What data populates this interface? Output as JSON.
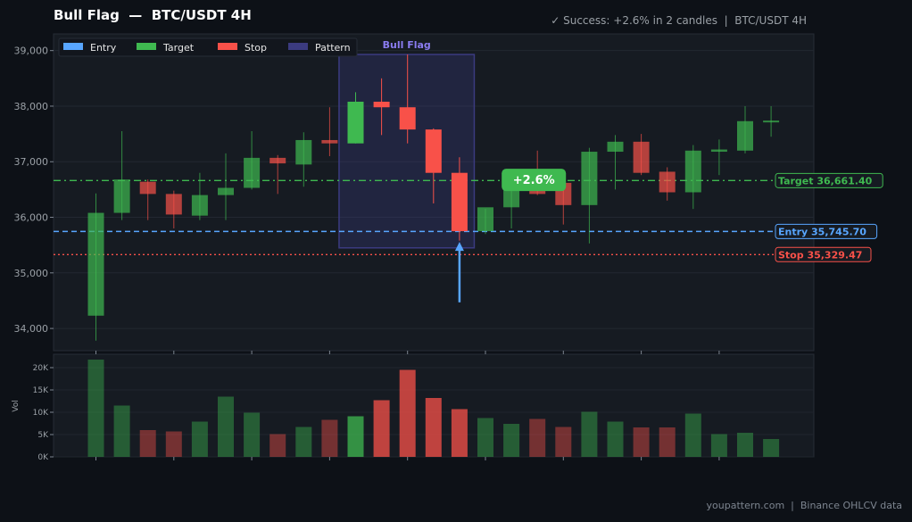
{
  "header": {
    "title": "Bull Flag  —  BTC/USDT 4H",
    "status": "✓ Success: +2.6% in 2 candles  |  BTC/USDT 4H"
  },
  "footer": {
    "text": "youpattern.com  |  Binance OHLCV data"
  },
  "colors": {
    "bg": "#0d1117",
    "panel": "#161b22",
    "up": "#3fb950",
    "down": "#f85149",
    "entry": "#58a6ff",
    "target": "#3fb950",
    "stop": "#f85149",
    "pattern": "#3b3b80",
    "pattern_label": "#8a7cf0"
  },
  "chart_data": {
    "type": "candlestick",
    "price_ylim": [
      33600,
      39300
    ],
    "price_ticks": [
      "34,000",
      "35,000",
      "36,000",
      "37,000",
      "38,000",
      "39,000"
    ],
    "price_tick_values": [
      34000,
      35000,
      36000,
      37000,
      38000,
      39000
    ],
    "volume_ylim": [
      0,
      23000
    ],
    "volume_ticks": [
      "0K",
      "5K",
      "10K",
      "15K",
      "20K"
    ],
    "volume_tick_values": [
      0,
      5000,
      10000,
      15000,
      20000
    ],
    "volume_ylabel": "Vol",
    "grid": true,
    "legend_position": "top-left",
    "legend": [
      {
        "label": "Entry",
        "color": "#58a6ff"
      },
      {
        "label": "Target",
        "color": "#3fb950"
      },
      {
        "label": "Stop",
        "color": "#f85149"
      },
      {
        "label": "Pattern",
        "color": "#3b3b80"
      }
    ],
    "candles": [
      {
        "o": 34230,
        "h": 36430,
        "l": 33780,
        "c": 36080,
        "v": 21800
      },
      {
        "o": 36080,
        "h": 37550,
        "l": 35950,
        "c": 36680,
        "v": 11500
      },
      {
        "o": 36640,
        "h": 36680,
        "l": 35950,
        "c": 36420,
        "v": 6000
      },
      {
        "o": 36420,
        "h": 36480,
        "l": 35800,
        "c": 36050,
        "v": 5700
      },
      {
        "o": 36030,
        "h": 36800,
        "l": 35950,
        "c": 36400,
        "v": 7900
      },
      {
        "o": 36400,
        "h": 37150,
        "l": 35950,
        "c": 36530,
        "v": 13500
      },
      {
        "o": 36530,
        "h": 37550,
        "l": 36500,
        "c": 37070,
        "v": 9900
      },
      {
        "o": 37070,
        "h": 37120,
        "l": 36420,
        "c": 36970,
        "v": 5100
      },
      {
        "o": 36950,
        "h": 37530,
        "l": 36550,
        "c": 37390,
        "v": 6700
      },
      {
        "o": 37390,
        "h": 37980,
        "l": 37100,
        "c": 37330,
        "v": 8300
      },
      {
        "o": 37330,
        "h": 38250,
        "l": 37330,
        "c": 38080,
        "v": 9100
      },
      {
        "o": 38080,
        "h": 38500,
        "l": 37480,
        "c": 37980,
        "v": 12700
      },
      {
        "o": 37980,
        "h": 38930,
        "l": 37330,
        "c": 37580,
        "v": 19500
      },
      {
        "o": 37580,
        "h": 37600,
        "l": 36250,
        "c": 36800,
        "v": 13200
      },
      {
        "o": 36800,
        "h": 37080,
        "l": 35580,
        "c": 35750,
        "v": 10700
      },
      {
        "o": 35750,
        "h": 36150,
        "l": 35700,
        "c": 36180,
        "v": 8700
      },
      {
        "o": 36180,
        "h": 36800,
        "l": 35800,
        "c": 36680,
        "v": 7400
      },
      {
        "o": 36680,
        "h": 37200,
        "l": 36400,
        "c": 36420,
        "v": 8500
      },
      {
        "o": 36620,
        "h": 36680,
        "l": 35870,
        "c": 36220,
        "v": 6700
      },
      {
        "o": 36220,
        "h": 37250,
        "l": 35530,
        "c": 37180,
        "v": 10100
      },
      {
        "o": 37180,
        "h": 37480,
        "l": 36500,
        "c": 37360,
        "v": 7900
      },
      {
        "o": 37360,
        "h": 37500,
        "l": 36760,
        "c": 36800,
        "v": 6600
      },
      {
        "o": 36820,
        "h": 36900,
        "l": 36300,
        "c": 36450,
        "v": 6600
      },
      {
        "o": 36450,
        "h": 37300,
        "l": 36150,
        "c": 37200,
        "v": 9700
      },
      {
        "o": 37180,
        "h": 37400,
        "l": 36760,
        "c": 37220,
        "v": 5100
      },
      {
        "o": 37200,
        "h": 38000,
        "l": 37150,
        "c": 37730,
        "v": 5400
      },
      {
        "o": 37720,
        "h": 38000,
        "l": 37450,
        "c": 37740,
        "v": 4000
      }
    ],
    "levels": [
      {
        "key": "target",
        "name": "Target",
        "value": 36661.4,
        "display": "36,661.40",
        "style": "dash-dot",
        "color": "#3fb950"
      },
      {
        "key": "entry",
        "name": "Entry",
        "value": 35745.7,
        "display": "35,745.70",
        "style": "dashed",
        "color": "#58a6ff"
      },
      {
        "key": "stop",
        "name": "Stop",
        "value": 35329.47,
        "display": "35,329.47",
        "style": "dotted",
        "color": "#f85149"
      }
    ],
    "pattern": {
      "label": "Bull Flag",
      "start_index": 10,
      "end_index": 14,
      "price_top": 38930,
      "price_bottom": 35450
    },
    "entry_marker": {
      "index": 14,
      "from_price": 34470,
      "to_price": 35540
    },
    "annotation": {
      "text": "+2.6%",
      "index": 17,
      "price": 36680
    }
  }
}
